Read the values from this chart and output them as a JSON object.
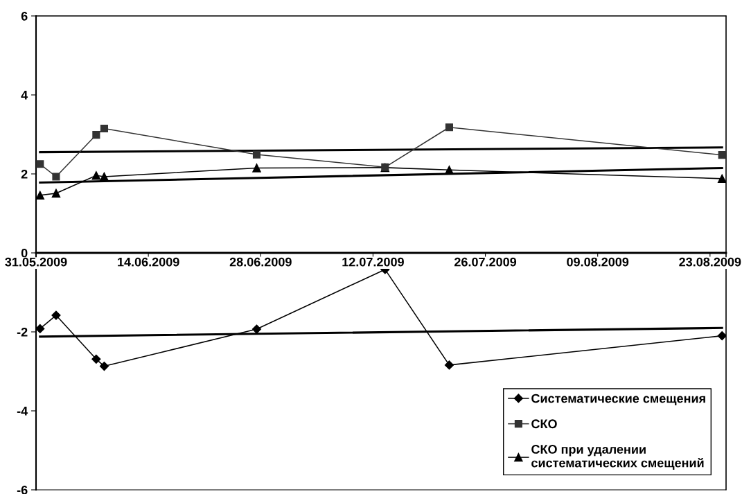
{
  "chart_data": {
    "type": "line",
    "x": [
      "2009-05-31T12:00",
      "2009-06-02T12:00",
      "2009-06-07T12:00",
      "2009-06-08T12:00",
      "2009-06-27T12:00",
      "2009-07-13T12:00",
      "2009-07-21T12:00",
      "2009-08-24T12:00"
    ],
    "series": [
      {
        "name": "Систематические смещения",
        "color": "#000000",
        "marker": "diamond",
        "values": [
          -1.92,
          -1.58,
          -2.69,
          -2.87,
          -1.93,
          -0.42,
          -2.84,
          -2.1
        ]
      },
      {
        "name": "СКО",
        "color": "#333333",
        "marker": "square",
        "values": [
          2.25,
          1.93,
          2.99,
          3.15,
          2.49,
          2.17,
          3.18,
          2.48
        ]
      },
      {
        "name": "СКО при удалении\nсистематических смещений",
        "color": "#000000",
        "marker": "triangle",
        "values": [
          1.46,
          1.51,
          1.96,
          1.93,
          2.15,
          2.16,
          2.1,
          1.88
        ]
      },
      {
        "type": "line",
        "color": "#000000",
        "marker": "none",
        "x": [
          "2009-05-31T12:00",
          "2009-08-24T12:00"
        ],
        "values": [
          -2.12,
          -1.9
        ]
      },
      {
        "type": "line",
        "color": "#000000",
        "marker": "none",
        "x": [
          "2009-05-31T12:00",
          "2009-08-24T12:00"
        ],
        "values": [
          2.55,
          2.67
        ]
      },
      {
        "type": "line",
        "color": "#000000",
        "marker": "none",
        "x": [
          "2009-05-31T12:00",
          "2009-08-24T12:00"
        ],
        "values": [
          1.78,
          2.15
        ]
      }
    ],
    "xlim": [
      "2009-05-31",
      "2009-08-25"
    ],
    "xticks": [
      {
        "value": "2009-05-31",
        "label": "31.05.2009"
      },
      {
        "value": "2009-06-14",
        "label": "14.06.2009"
      },
      {
        "value": "2009-06-28",
        "label": "28.06.2009"
      },
      {
        "value": "2009-07-12",
        "label": "12.07.2009"
      },
      {
        "value": "2009-07-26",
        "label": "26.07.2009"
      },
      {
        "value": "2009-08-09",
        "label": "09.08.2009"
      },
      {
        "value": "2009-08-23",
        "label": "23.08.2009"
      }
    ],
    "ylim": [
      -6,
      6
    ],
    "yticks": [
      -6,
      -4,
      -2,
      0,
      2,
      4,
      6
    ],
    "grid": false,
    "legend": "bottom right"
  }
}
